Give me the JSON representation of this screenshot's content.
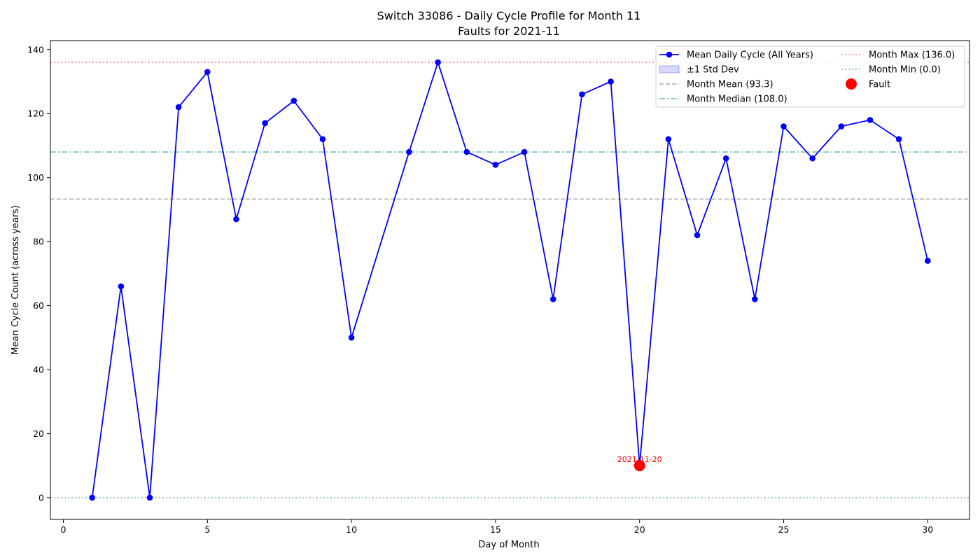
{
  "chart_data": {
    "type": "line",
    "title": "Switch 33086 - Daily Cycle Profile for Month 11",
    "subtitle": "Faults for 2021-11",
    "xlabel": "Day of Month",
    "ylabel": "Mean Cycle Count (across years)",
    "xlim": [
      -0.45,
      31.45
    ],
    "ylim": [
      -6.8,
      142.8
    ],
    "x_ticks": [
      0,
      5,
      10,
      15,
      20,
      25,
      30
    ],
    "y_ticks": [
      0,
      20,
      40,
      60,
      80,
      100,
      120,
      140
    ],
    "grid": false,
    "legend_position": "top-right",
    "series": [
      {
        "name": "Mean Daily Cycle (All Years)",
        "color": "#0000ff",
        "x": [
          1,
          2,
          3,
          4,
          5,
          6,
          7,
          8,
          9,
          10,
          12,
          13,
          14,
          15,
          16,
          17,
          18,
          19,
          20,
          21,
          22,
          23,
          24,
          25,
          26,
          27,
          28,
          29,
          30
        ],
        "y": [
          0,
          66,
          0,
          122,
          133,
          87,
          117,
          124,
          112,
          50,
          108,
          136,
          108,
          104,
          108,
          62,
          126,
          130,
          10,
          112,
          82,
          106,
          62,
          116,
          106,
          116,
          118,
          112,
          74
        ]
      }
    ],
    "std_band": {
      "name": "±1 Std Dev",
      "color": "#0000ff"
    },
    "reference_lines": [
      {
        "name": "Month Mean (93.3)",
        "value": 93.3,
        "color": "#a9a9a9",
        "style": "dashed"
      },
      {
        "name": "Month Median (108.0)",
        "value": 108.0,
        "color": "#66bbbb",
        "style": "dashdot"
      },
      {
        "name": "Month Max (136.0)",
        "value": 136.0,
        "color": "#ff8080",
        "style": "dotted"
      },
      {
        "name": "Month Min (0.0)",
        "value": 0.0,
        "color": "#80c080",
        "style": "dotted"
      }
    ],
    "faults": [
      {
        "name": "Fault",
        "x": 20,
        "y": 10,
        "label": "2021-11-20",
        "color": "#ff0000"
      }
    ],
    "legend": [
      "Mean Daily Cycle (All Years)",
      "±1 Std Dev",
      "Month Mean (93.3)",
      "Month Median (108.0)",
      "Month Max (136.0)",
      "Month Min (0.0)",
      "Fault"
    ]
  }
}
